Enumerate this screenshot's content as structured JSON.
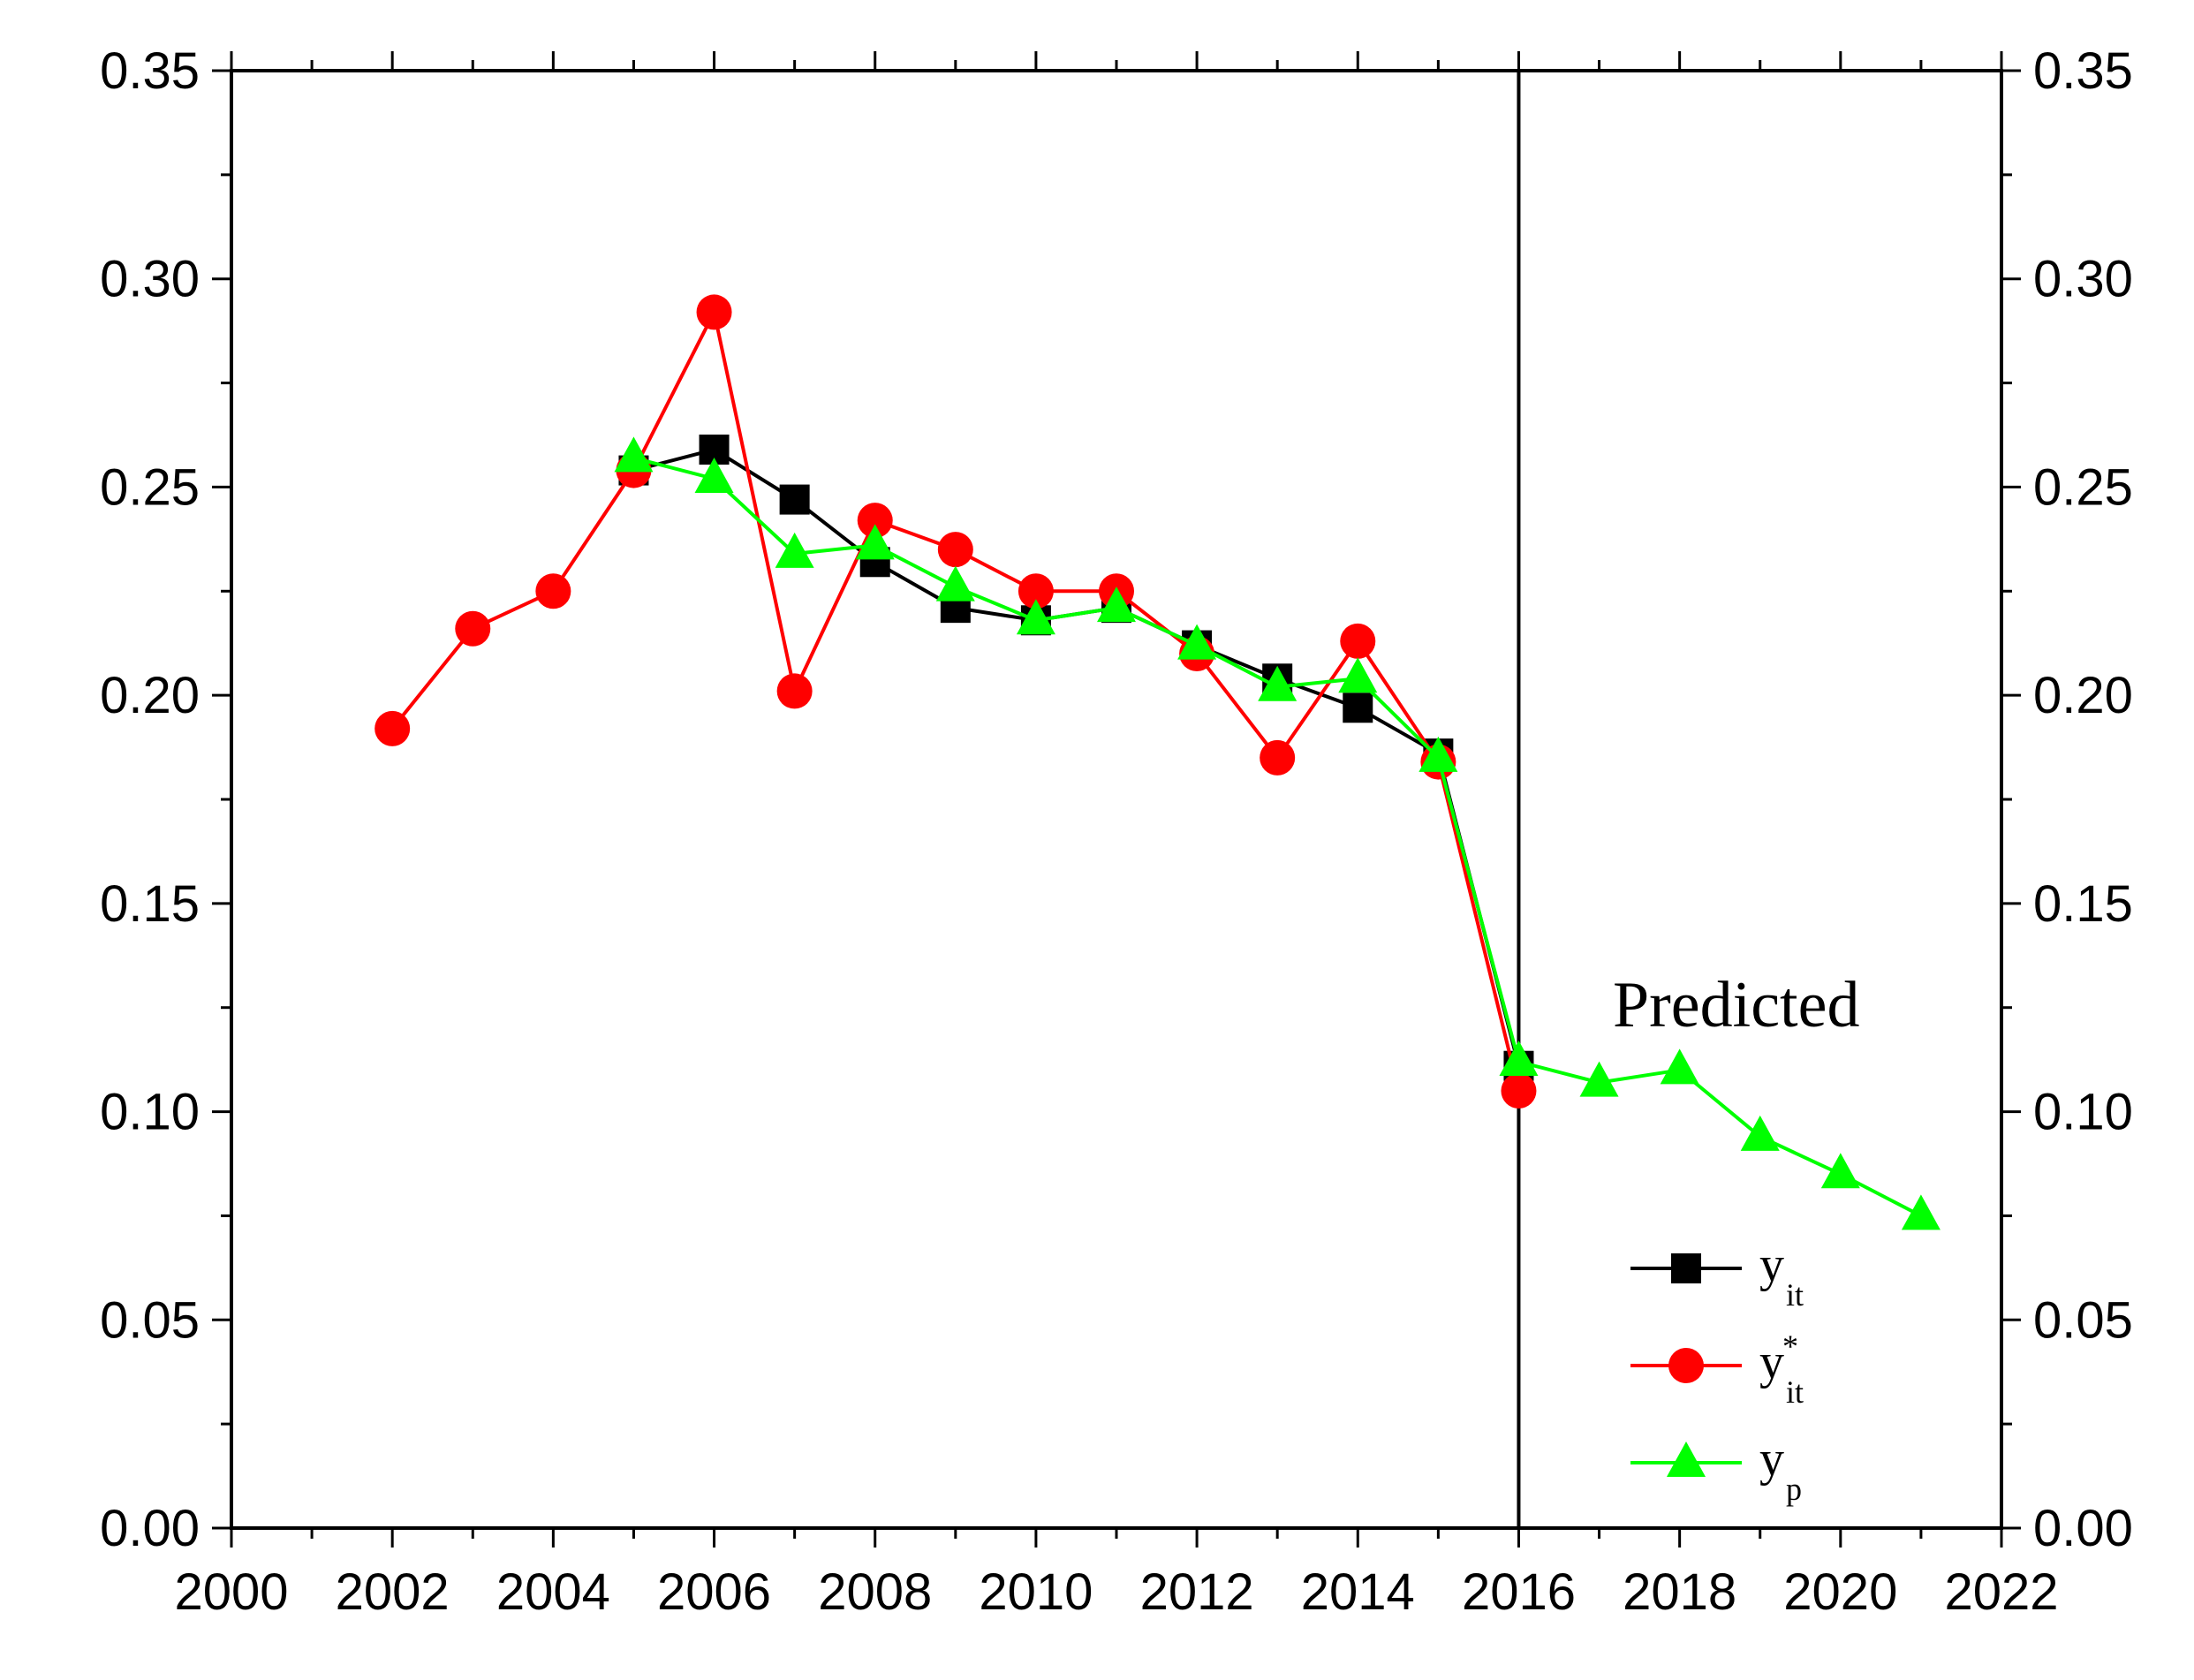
{
  "chart_data": {
    "type": "line",
    "title": "",
    "xlabel": "",
    "ylabel": "",
    "xlim": [
      2000,
      2022
    ],
    "ylim": [
      0,
      0.35
    ],
    "x_ticks": [
      "2000",
      "2002",
      "2004",
      "2006",
      "2008",
      "2010",
      "2012",
      "2014",
      "2016",
      "2018",
      "2020",
      "2022"
    ],
    "y_ticks": [
      "0.00",
      "0.05",
      "0.10",
      "0.15",
      "0.20",
      "0.25",
      "0.30",
      "0.35"
    ],
    "secondary_y_axis": true,
    "divider_x": 2016,
    "annotation": "Predicted",
    "legend_position": "bottom-right",
    "series": [
      {
        "name": "y_it",
        "label_main": "y",
        "label_sub": "it",
        "label_sup": "",
        "color": "#000000",
        "marker": "square",
        "x": [
          2005,
          2006,
          2007,
          2008,
          2009,
          2010,
          2011,
          2012,
          2013,
          2014,
          2015,
          2016
        ],
        "values": [
          0.254,
          0.259,
          0.247,
          0.232,
          0.221,
          0.218,
          0.221,
          0.212,
          0.204,
          0.197,
          0.186,
          0.111
        ]
      },
      {
        "name": "y*_it",
        "label_main": "y",
        "label_sub": "it",
        "label_sup": "*",
        "color": "#ff0000",
        "marker": "circle",
        "x": [
          2002,
          2003,
          2004,
          2005,
          2006,
          2007,
          2008,
          2009,
          2010,
          2011,
          2012,
          2013,
          2014,
          2015,
          2016
        ],
        "values": [
          0.192,
          0.216,
          0.225,
          0.254,
          0.292,
          0.201,
          0.242,
          0.235,
          0.225,
          0.225,
          0.21,
          0.185,
          0.213,
          0.184,
          0.105
        ]
      },
      {
        "name": "y_p",
        "label_main": "y",
        "label_sub": "p",
        "label_sup": "",
        "color": "#00ff00",
        "marker": "triangle",
        "x": [
          2005,
          2006,
          2007,
          2008,
          2009,
          2010,
          2011,
          2012,
          2013,
          2014,
          2015,
          2016,
          2017,
          2018,
          2019,
          2020,
          2021
        ],
        "values": [
          0.257,
          0.252,
          0.234,
          0.236,
          0.226,
          0.218,
          0.221,
          0.212,
          0.202,
          0.204,
          0.185,
          0.112,
          0.107,
          0.11,
          0.094,
          0.085,
          0.075
        ]
      }
    ]
  }
}
